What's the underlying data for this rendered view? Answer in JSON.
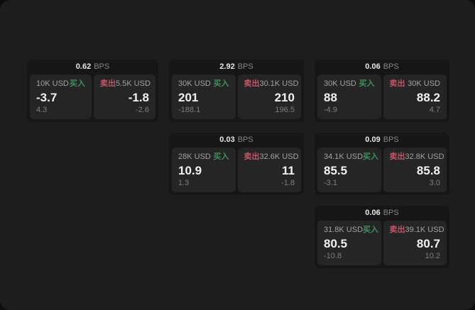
{
  "colors": {
    "buy_green": "#3f8f5b",
    "sell_red": "#c25568",
    "window_bg": "#1d1d1d",
    "card_bg": "#161616",
    "panel_bg": "#252525"
  },
  "labels": {
    "bps_unit": "BPS",
    "buy": "买入",
    "sell": "卖出"
  },
  "cards": [
    {
      "bps_value": "0.62",
      "buy": {
        "amount": "10K USD",
        "value": "-3.7",
        "sub_value": "4.3"
      },
      "sell": {
        "amount": "5.5K USD",
        "value": "-1.8",
        "sub_value": "-2.6"
      }
    },
    {
      "bps_value": "2.92",
      "buy": {
        "amount": "30K USD",
        "value": "201",
        "sub_value": "-188.1"
      },
      "sell": {
        "amount": "30.1K USD",
        "value": "210",
        "sub_value": "196.5"
      }
    },
    {
      "bps_value": "0.06",
      "buy": {
        "amount": "30K USD",
        "value": "88",
        "sub_value": "-4.9"
      },
      "sell": {
        "amount": "30K USD",
        "value": "88.2",
        "sub_value": "4.7"
      }
    },
    {
      "bps_value": "0.03",
      "buy": {
        "amount": "28K USD",
        "value": "10.9",
        "sub_value": "1.3"
      },
      "sell": {
        "amount": "32.6K USD",
        "value": "11",
        "sub_value": "-1.8"
      }
    },
    {
      "bps_value": "0.09",
      "buy": {
        "amount": "34.1K USD",
        "value": "85.5",
        "sub_value": "-3.1"
      },
      "sell": {
        "amount": "32.8K USD",
        "value": "85.8",
        "sub_value": "3.0"
      }
    },
    {
      "bps_value": "0.06",
      "buy": {
        "amount": "31.8K USD",
        "value": "80.5",
        "sub_value": "-10.8"
      },
      "sell": {
        "amount": "39.1K USD",
        "value": "80.7",
        "sub_value": "10.2"
      }
    }
  ]
}
